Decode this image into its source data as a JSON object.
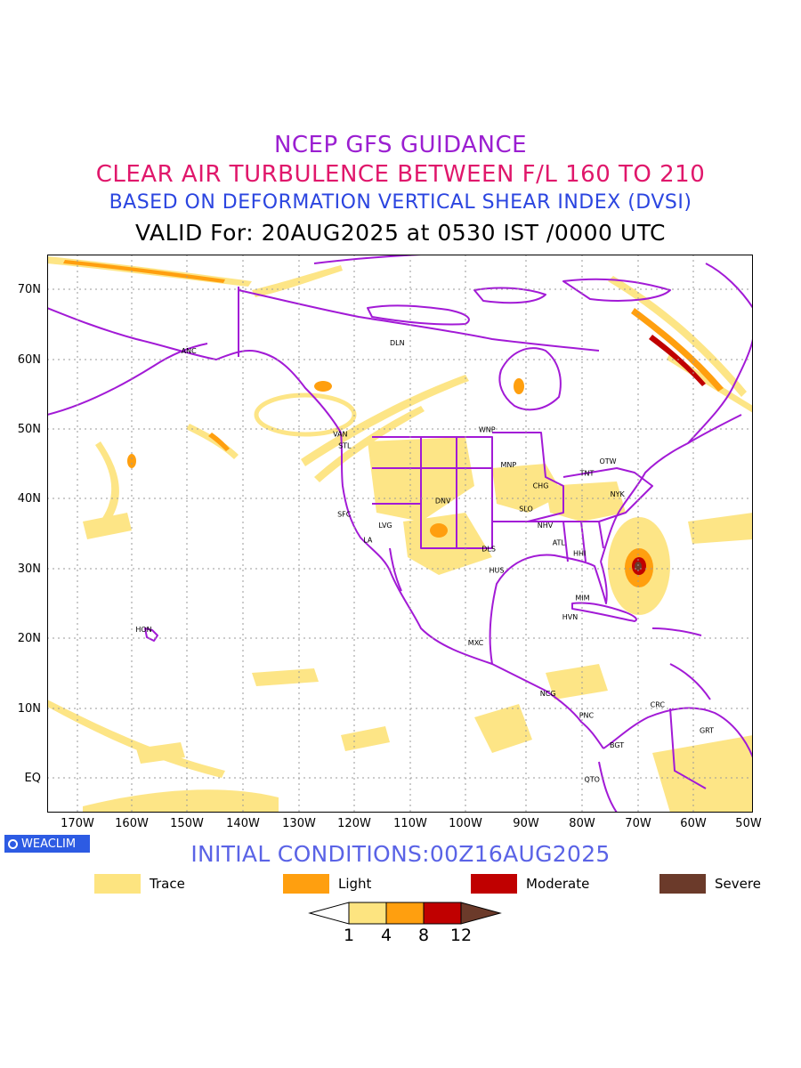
{
  "header": {
    "title1": "NCEP GFS GUIDANCE",
    "title2": "CLEAR AIR TURBULENCE BETWEEN F/L 160 TO 210",
    "title3": "BASED ON DEFORMATION VERTICAL SHEAR INDEX (DVSI)",
    "title4": "VALID For: 20AUG2025 at 0530 IST /0000 UTC"
  },
  "colors": {
    "title1": "#9b1fd1",
    "title2": "#e0176b",
    "title3": "#2b45e0",
    "initial": "#5a63e6",
    "boundary": "#a21ad6",
    "trace": "#fde480",
    "light": "#ff9f0f",
    "moderate": "#c00000",
    "severe": "#6b3a2a"
  },
  "map": {
    "lat_labels": [
      "70N",
      "60N",
      "50N",
      "40N",
      "30N",
      "20N",
      "10N",
      "EQ"
    ],
    "lon_labels": [
      "170W",
      "160W",
      "150W",
      "140W",
      "130W",
      "120W",
      "110W",
      "100W",
      "90W",
      "80W",
      "70W",
      "60W",
      "50W"
    ],
    "stations": [
      {
        "name": "ANC",
        "lon": -149.9,
        "lat": 61.2
      },
      {
        "name": "DLN",
        "lon": -113.0,
        "lat": 62.4
      },
      {
        "name": "VAN",
        "lon": -123.1,
        "lat": 49.3
      },
      {
        "name": "STL",
        "lon": -122.3,
        "lat": 47.6
      },
      {
        "name": "WNP",
        "lon": -97.1,
        "lat": 49.9
      },
      {
        "name": "MNP",
        "lon": -93.3,
        "lat": 44.9
      },
      {
        "name": "TNT",
        "lon": -79.4,
        "lat": 43.7
      },
      {
        "name": "OTW",
        "lon": -75.7,
        "lat": 45.4
      },
      {
        "name": "CHG",
        "lon": -87.6,
        "lat": 41.9
      },
      {
        "name": "NYK",
        "lon": -74.0,
        "lat": 40.7
      },
      {
        "name": "DNV",
        "lon": -104.9,
        "lat": 39.7
      },
      {
        "name": "SFC",
        "lon": -122.4,
        "lat": 37.8
      },
      {
        "name": "SLO",
        "lon": -90.2,
        "lat": 38.6
      },
      {
        "name": "LVG",
        "lon": -115.1,
        "lat": 36.2
      },
      {
        "name": "NHV",
        "lon": -86.8,
        "lat": 36.2
      },
      {
        "name": "LA",
        "lon": -118.2,
        "lat": 34.1
      },
      {
        "name": "ATL",
        "lon": -84.4,
        "lat": 33.7
      },
      {
        "name": "DLS",
        "lon": -96.8,
        "lat": 32.8
      },
      {
        "name": "HHI",
        "lon": -80.7,
        "lat": 32.2
      },
      {
        "name": "HUS",
        "lon": -95.4,
        "lat": 29.8
      },
      {
        "name": "MIM",
        "lon": -80.2,
        "lat": 25.8
      },
      {
        "name": "HON",
        "lon": -157.9,
        "lat": 21.3
      },
      {
        "name": "HVN",
        "lon": -82.4,
        "lat": 23.1
      },
      {
        "name": "MXC",
        "lon": -99.1,
        "lat": 19.4
      },
      {
        "name": "NCG",
        "lon": -86.3,
        "lat": 12.1
      },
      {
        "name": "CRC",
        "lon": -66.9,
        "lat": 10.5
      },
      {
        "name": "PNC",
        "lon": -79.5,
        "lat": 9.0
      },
      {
        "name": "GRT",
        "lon": -58.2,
        "lat": 6.8
      },
      {
        "name": "BGT",
        "lon": -74.1,
        "lat": 4.7
      },
      {
        "name": "QTO",
        "lon": -78.5,
        "lat": -0.2
      }
    ]
  },
  "footer": {
    "badge": "WEACLIM",
    "initial_conditions": "INITIAL CONDITIONS:00Z16AUG2025"
  },
  "legend": [
    {
      "label": "Trace",
      "color": "#fde480"
    },
    {
      "label": "Light",
      "color": "#ff9f0f"
    },
    {
      "label": "Moderate",
      "color": "#c00000"
    },
    {
      "label": "Severe",
      "color": "#6b3a2a"
    }
  ],
  "colorbar": {
    "ticks": [
      "1",
      "4",
      "8",
      "12"
    ]
  }
}
